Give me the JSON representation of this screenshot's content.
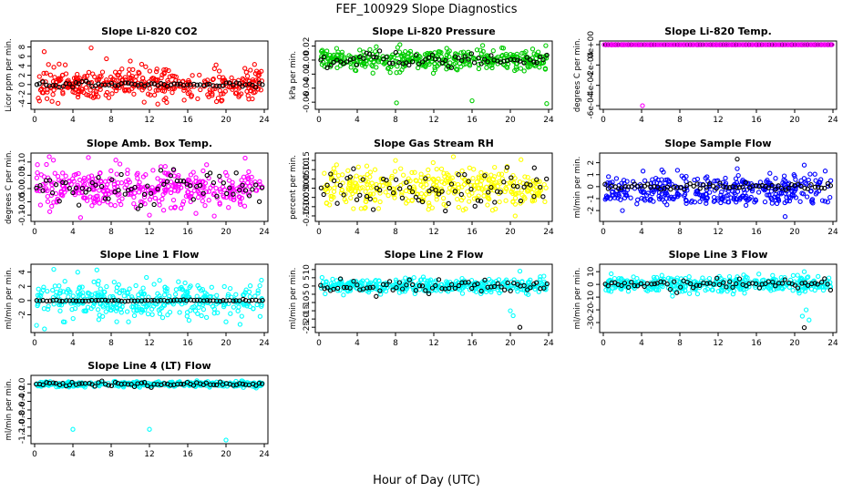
{
  "figure": {
    "title": "FEF_100929  Slope Diagnostics",
    "xlabel": "Hour of Day (UTC)"
  },
  "chart_data": [
    {
      "type": "scatter",
      "title": "Slope Li-820 CO2",
      "ylabel": "Licor ppm per min.",
      "xlim": [
        0,
        24
      ],
      "ylim": [
        -4.5,
        8.5
      ],
      "xticks": [
        0,
        4,
        8,
        12,
        16,
        20,
        24
      ],
      "yticks": [
        -4,
        -2,
        0,
        2,
        4,
        6,
        8
      ],
      "ytick_labels": [
        "-4",
        "-2",
        "0",
        "2",
        "4",
        "6",
        "8"
      ],
      "series": [
        {
          "color": "#ff0000",
          "spread": 1.6,
          "outliers": [
            [
              1.0,
              7.0
            ],
            [
              5.9,
              7.8
            ],
            [
              7.5,
              5.5
            ],
            [
              10.0,
              5.0
            ],
            [
              0.5,
              -3.5
            ],
            [
              13.8,
              -3.8
            ],
            [
              1.3,
              -3.0
            ],
            [
              3.2,
              4.2
            ]
          ]
        },
        {
          "color": "#000000",
          "spread": 0.3,
          "outliers": []
        }
      ]
    },
    {
      "type": "scatter",
      "title": "Slope Li-820 Pressure",
      "ylabel": "kPa per min.",
      "xlim": [
        0,
        24
      ],
      "ylim": [
        -0.065,
        0.022
      ],
      "xticks": [
        0,
        4,
        8,
        12,
        16,
        20,
        24
      ],
      "yticks": [
        -0.06,
        -0.04,
        -0.02,
        0.0,
        0.02
      ],
      "ytick_labels": [
        "-0.06",
        "-0.04",
        "-0.02",
        "0.00",
        "0.02"
      ],
      "series": [
        {
          "color": "#00cc00",
          "spread": 0.007,
          "outliers": [
            [
              8.1,
              -0.061
            ],
            [
              16.0,
              -0.058
            ],
            [
              23.8,
              -0.062
            ],
            [
              12.5,
              0.012
            ]
          ]
        },
        {
          "color": "#000000",
          "spread": 0.005,
          "outliers": []
        }
      ]
    },
    {
      "type": "scatter",
      "title": "Slope Li-820 Temp.",
      "ylabel": "degrees C per min.",
      "xlim": [
        0,
        24
      ],
      "ylim": [
        -0.0006,
        0.0
      ],
      "xticks": [
        0,
        4,
        8,
        12,
        16,
        20,
        24
      ],
      "yticks": [
        -0.0006,
        -0.0004,
        -0.0002,
        0.0
      ],
      "ytick_labels": [
        "-6e-04",
        "-4e-04",
        "-2e-04",
        "0e+00"
      ],
      "series": [
        {
          "color": "#ff00ff",
          "spread": 0.0,
          "outliers": [
            [
              4.1,
              -0.0006
            ]
          ]
        },
        {
          "color": "#000000",
          "spread": 0.0,
          "outliers": []
        }
      ]
    },
    {
      "type": "scatter",
      "title": "Slope Amb. Box Temp.",
      "ylabel": "degrees C per min.",
      "xlim": [
        0,
        24
      ],
      "ylim": [
        -0.11,
        0.12
      ],
      "xticks": [
        0,
        4,
        8,
        12,
        16,
        20,
        24
      ],
      "yticks": [
        -0.1,
        -0.05,
        0.0,
        0.05,
        0.1
      ],
      "ytick_labels": [
        "-0.10",
        "-0.05",
        "0.00",
        "0.05",
        "0.10"
      ],
      "series": [
        {
          "color": "#ff00ff",
          "spread": 0.04,
          "outliers": [
            [
              12.0,
              -0.1
            ],
            [
              22.0,
              0.115
            ],
            [
              0.3,
              0.09
            ]
          ]
        },
        {
          "color": "#000000",
          "spread": 0.035,
          "outliers": []
        }
      ]
    },
    {
      "type": "scatter",
      "title": "Slope Gas Stream RH",
      "ylabel": "percent per min.",
      "xlim": [
        0,
        24
      ],
      "ylim": [
        -0.16,
        0.17
      ],
      "xticks": [
        0,
        4,
        8,
        12,
        16,
        20,
        24
      ],
      "yticks": [
        -0.15,
        -0.1,
        -0.05,
        0.0,
        0.05,
        0.1,
        0.15
      ],
      "ytick_labels": [
        "-0.15",
        "-0.10",
        "-0.05",
        "0.00",
        "0.05",
        "0.10",
        "0.15"
      ],
      "series": [
        {
          "color": "#ffff00",
          "spread": 0.05,
          "outliers": [
            [
              8.0,
              0.15
            ],
            [
              20.5,
              -0.15
            ],
            [
              5.0,
              0.12
            ]
          ]
        },
        {
          "color": "#000000",
          "spread": 0.05,
          "outliers": [
            [
              22.5,
              0.11
            ]
          ]
        }
      ]
    },
    {
      "type": "scatter",
      "title": "Slope Sample Flow",
      "ylabel": "ml/min per min.",
      "xlim": [
        0,
        24
      ],
      "ylim": [
        -2.6,
        2.5
      ],
      "xticks": [
        0,
        4,
        8,
        12,
        16,
        20,
        24
      ],
      "yticks": [
        -2,
        -1,
        0,
        1,
        2
      ],
      "ytick_labels": [
        "-2",
        "-1",
        "0",
        "1",
        "2"
      ],
      "series": [
        {
          "color": "#0000ff",
          "spread": 0.5,
          "outliers": [
            [
              19.0,
              -2.5
            ],
            [
              21.0,
              1.8
            ],
            [
              2.0,
              -2.0
            ],
            [
              14.0,
              1.5
            ]
          ]
        },
        {
          "color": "#000000",
          "spread": 0.15,
          "outliers": [
            [
              14.0,
              2.3
            ]
          ]
        }
      ]
    },
    {
      "type": "scatter",
      "title": "Slope Line 1 Flow",
      "ylabel": "ml/min per min.",
      "xlim": [
        0,
        24
      ],
      "ylim": [
        -4.0,
        4.6
      ],
      "xticks": [
        0,
        4,
        8,
        12,
        16,
        20,
        24
      ],
      "yticks": [
        -2,
        0,
        2,
        4
      ],
      "ytick_labels": [
        "-2",
        "0",
        "2",
        "4"
      ],
      "series": [
        {
          "color": "#00ffff",
          "spread": 1.2,
          "outliers": [
            [
              0.2,
              -3.5
            ],
            [
              3.0,
              -3.0
            ],
            [
              20.0,
              -3.0
            ],
            [
              2.0,
              4.4
            ],
            [
              4.5,
              4.0
            ],
            [
              6.5,
              4.3
            ]
          ]
        },
        {
          "color": "#000000",
          "spread": 0.05,
          "outliers": []
        }
      ]
    },
    {
      "type": "scatter",
      "title": "Slope Line 2 Flow",
      "ylabel": "ml/min per min.",
      "xlim": [
        0,
        24
      ],
      "ylim": [
        -26,
        11
      ],
      "xticks": [
        0,
        4,
        8,
        12,
        16,
        20,
        24
      ],
      "yticks": [
        -25,
        -20,
        -15,
        -10,
        -5,
        0,
        5,
        10
      ],
      "ytick_labels": [
        "-25",
        "-20",
        "-15",
        "-10",
        "-5",
        "0",
        "5",
        "10"
      ],
      "series": [
        {
          "color": "#00ffff",
          "spread": 2.0,
          "outliers": [
            [
              20.0,
              -15.0
            ],
            [
              20.3,
              -18.0
            ],
            [
              21.0,
              9.0
            ],
            [
              23.5,
              6.0
            ]
          ]
        },
        {
          "color": "#000000",
          "spread": 2.0,
          "outliers": [
            [
              21.0,
              -25.0
            ]
          ]
        }
      ]
    },
    {
      "type": "scatter",
      "title": "Slope Line 3 Flow",
      "ylabel": "ml/min per min.",
      "xlim": [
        0,
        24
      ],
      "ylim": [
        -35,
        13
      ],
      "xticks": [
        0,
        4,
        8,
        12,
        16,
        20,
        24
      ],
      "yticks": [
        -30,
        -20,
        -10,
        0,
        10
      ],
      "ytick_labels": [
        "-30",
        "-20",
        "-10",
        "0",
        "10"
      ],
      "series": [
        {
          "color": "#00ffff",
          "spread": 3.0,
          "outliers": [
            [
              21.0,
              10.0
            ],
            [
              21.2,
              -20.0
            ],
            [
              20.8,
              -25.0
            ],
            [
              21.5,
              -28.0
            ]
          ]
        },
        {
          "color": "#000000",
          "spread": 2.0,
          "outliers": [
            [
              21.0,
              -34.0
            ]
          ]
        }
      ]
    },
    {
      "type": "scatter",
      "title": "Slope Line 4 (LT) Flow",
      "ylabel": "ml/min per min.",
      "xlim": [
        0,
        24
      ],
      "ylim": [
        -1.3,
        0.12
      ],
      "xticks": [
        0,
        4,
        8,
        12,
        16,
        20,
        24
      ],
      "yticks": [
        -1.2,
        -1.0,
        -0.8,
        -0.6,
        -0.4,
        -0.2,
        0.0
      ],
      "ytick_labels": [
        "-1.2",
        "-1.0",
        "-0.8",
        "-0.6",
        "-0.4",
        "-0.2",
        "0.0"
      ],
      "series": [
        {
          "color": "#00ffff",
          "spread": 0.03,
          "outliers": [
            [
              4.0,
              -1.05
            ],
            [
              12.0,
              -1.05
            ],
            [
              20.0,
              -1.3
            ]
          ]
        },
        {
          "color": "#000000",
          "spread": 0.025,
          "outliers": []
        }
      ]
    }
  ]
}
